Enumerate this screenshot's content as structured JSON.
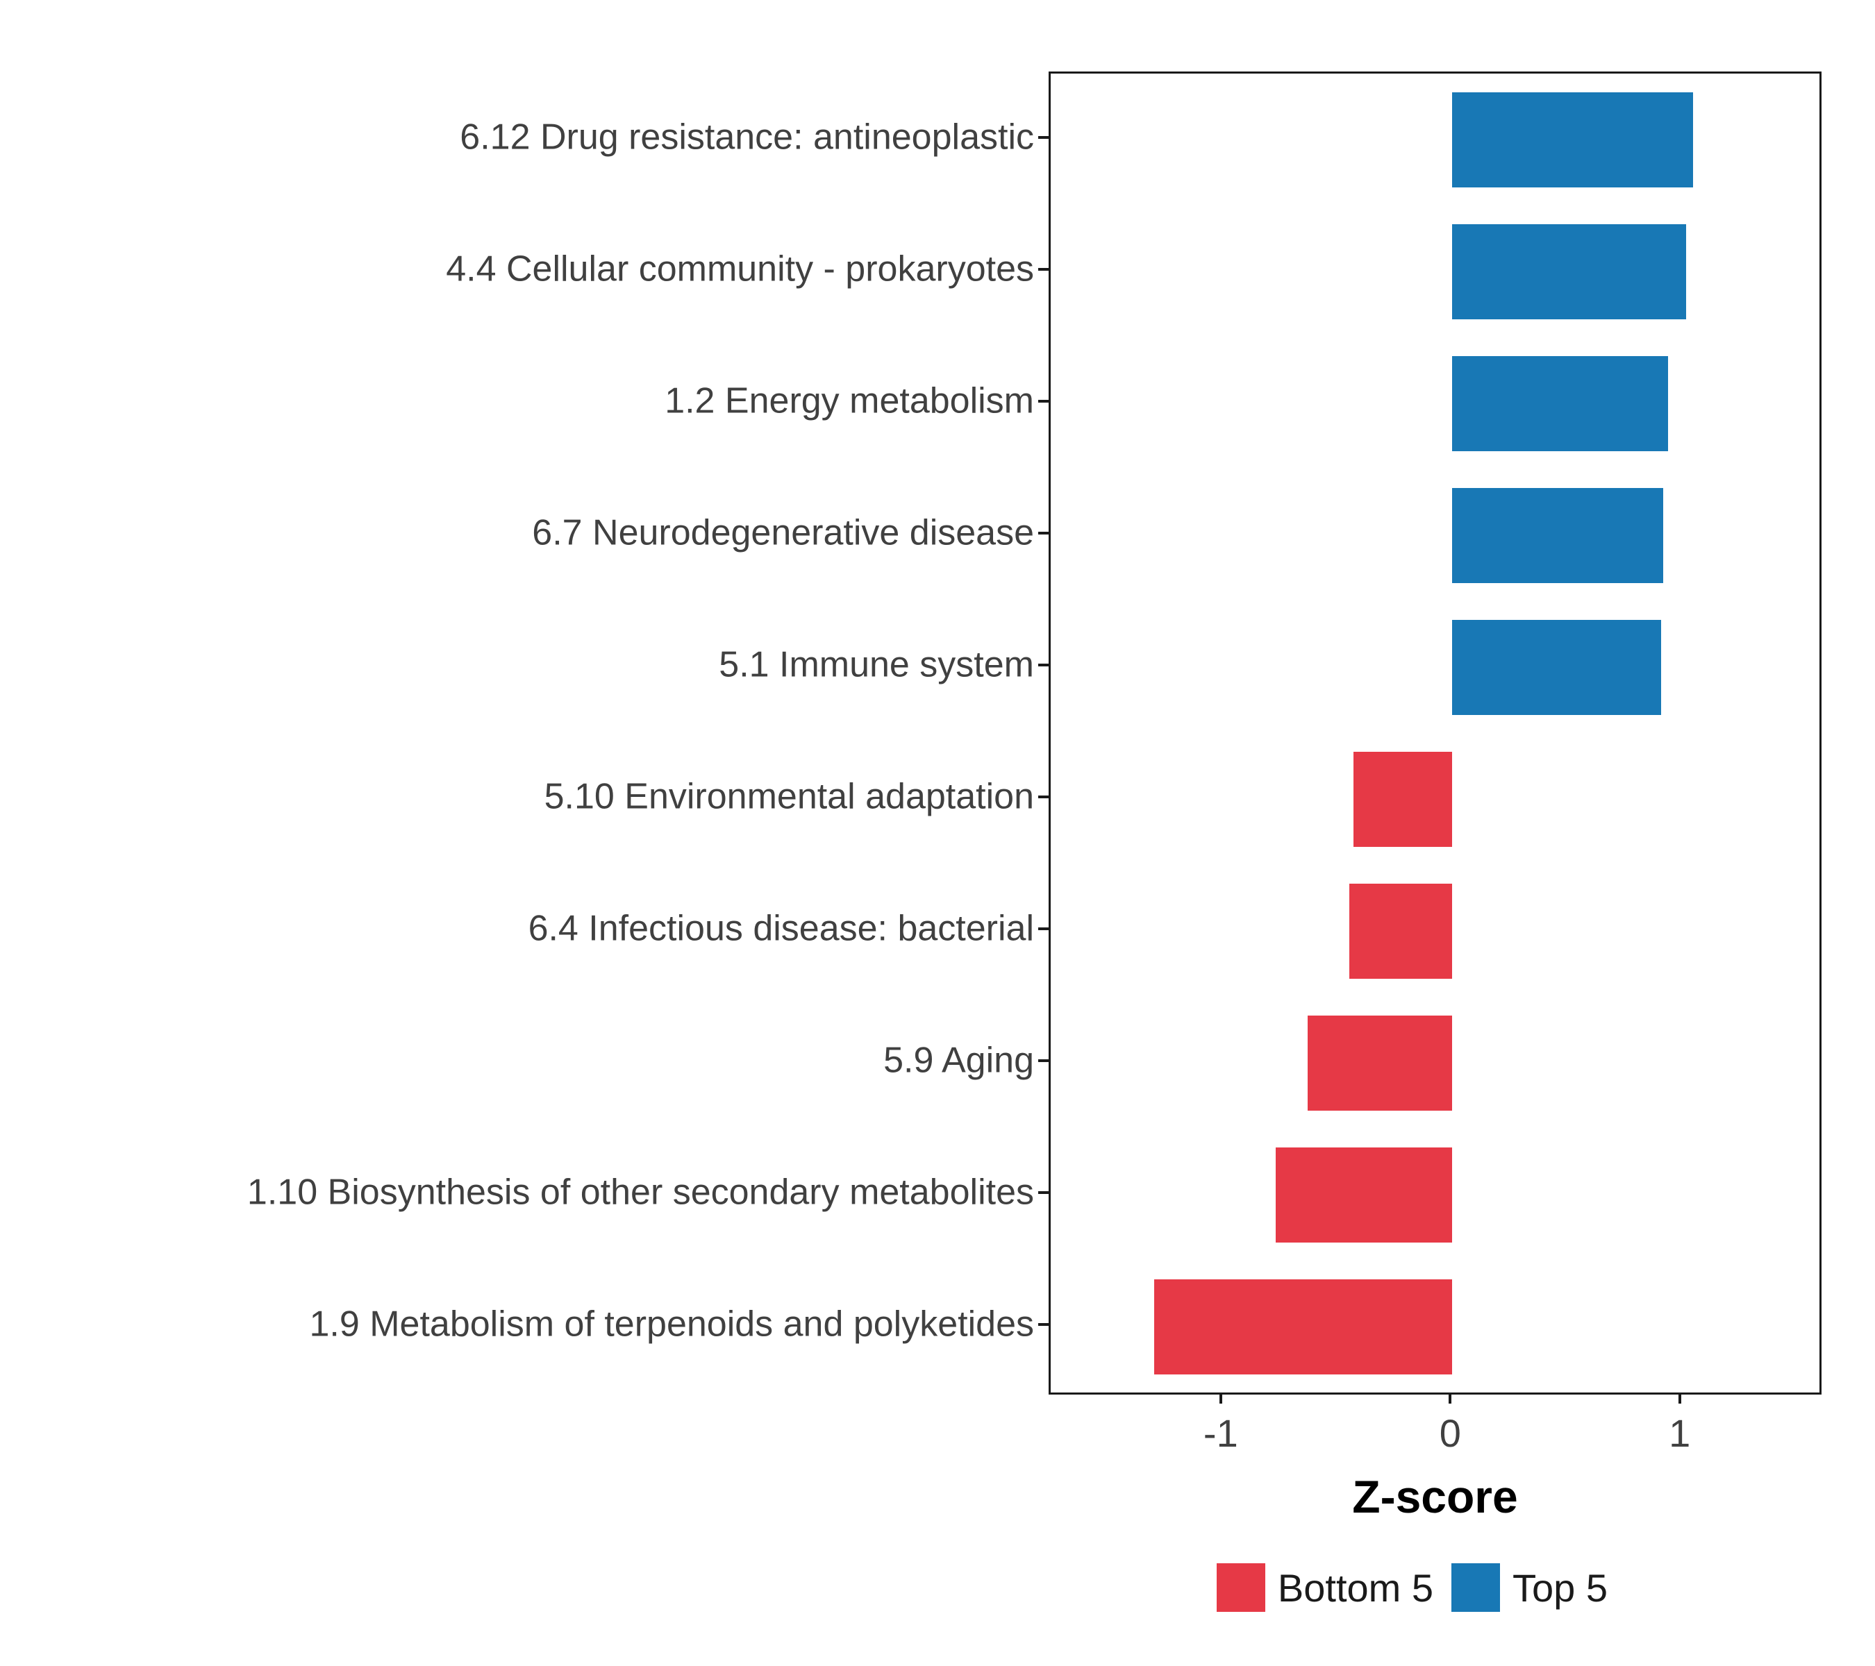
{
  "chart_data": {
    "type": "bar",
    "orientation": "horizontal",
    "title": "",
    "xlabel": "Z-score",
    "ylabel": "",
    "categories": [
      "6.12 Drug resistance: antineoplastic",
      "4.4 Cellular community - prokaryotes",
      "1.2 Energy metabolism",
      "6.7 Neurodegenerative disease",
      "5.1 Immune system",
      "5.10 Environmental adaptation",
      "6.4 Infectious disease: bacterial",
      "5.9 Aging",
      "1.10 Biosynthesis of other secondary metabolites",
      "1.9 Metabolism of terpenoids and polyketides"
    ],
    "values": [
      1.05,
      1.02,
      0.94,
      0.92,
      0.91,
      -0.43,
      -0.45,
      -0.63,
      -0.77,
      -1.3
    ],
    "groups": [
      "Top 5",
      "Top 5",
      "Top 5",
      "Top 5",
      "Top 5",
      "Bottom 5",
      "Bottom 5",
      "Bottom 5",
      "Bottom 5",
      "Bottom 5"
    ],
    "group_colors": {
      "Bottom 5": "#e63946",
      "Top 5": "#1878b5"
    },
    "xlim": [
      -1.75,
      1.6
    ],
    "xticks": [
      -1,
      0,
      1
    ],
    "grid": false,
    "panel_border": true,
    "legend": {
      "position": "bottom-right",
      "entries": [
        {
          "label": "Bottom 5",
          "color": "#e63946"
        },
        {
          "label": "Top 5",
          "color": "#1878b5"
        }
      ]
    }
  }
}
